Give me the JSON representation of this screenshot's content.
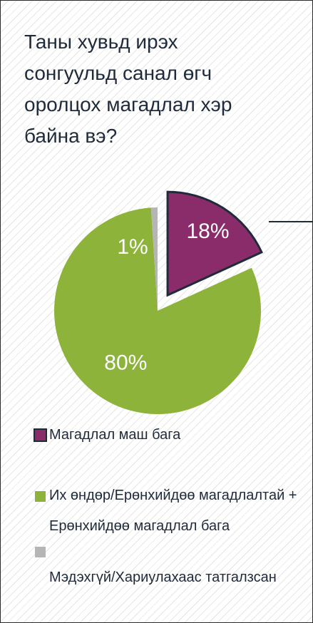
{
  "chart_data": {
    "type": "pie",
    "title": "Таны хувьд ирэх сонгуульд санал өгч оролцох магадлал хэр байна вэ?",
    "categories": [
      "Магадлал маш бага",
      "Их өндөр/Ерөнхийдөө магадлалтай + Ерөнхийдөө магадлал бага",
      "Мэдэхгүй/Хариулахаас татгалзсан"
    ],
    "values": [
      18,
      80,
      1
    ],
    "value_labels": [
      "18%",
      "80%",
      "1%"
    ],
    "colors": [
      "#8b2c6a",
      "#8db33a",
      "#b5b5b5"
    ]
  }
}
